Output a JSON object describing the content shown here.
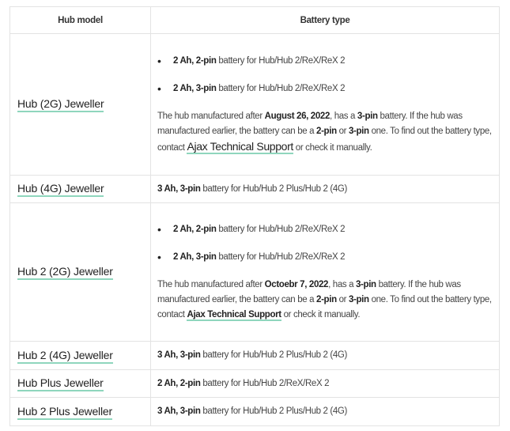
{
  "header": {
    "col_model": "Hub model",
    "col_battery": "Battery type"
  },
  "link_color": "#8fd6bd",
  "rows": [
    {
      "model": "Hub (2G) Jeweller",
      "bullets": [
        [
          {
            "b": true,
            "t": "2 Ah, 2-pin"
          },
          {
            "b": false,
            "t": " battery for Hub/Hub 2/ReX/ReX 2"
          }
        ],
        [
          {
            "b": true,
            "t": "2 Ah, 3-pin"
          },
          {
            "b": false,
            "t": " battery for Hub/Hub 2/ReX/ReX 2"
          }
        ]
      ],
      "note": [
        {
          "b": false,
          "t": "The hub manufactured after "
        },
        {
          "b": true,
          "t": "August 26, 2022"
        },
        {
          "b": false,
          "t": ", has a "
        },
        {
          "b": true,
          "t": "3-pin"
        },
        {
          "b": false,
          "t": " battery. If the hub was manufactured earlier, the battery can be a "
        },
        {
          "b": true,
          "t": "2-pin"
        },
        {
          "b": false,
          "t": " or "
        },
        {
          "b": true,
          "t": "3-pin"
        },
        {
          "b": false,
          "t": " one. To find out the battery type, contact "
        },
        {
          "link": "big",
          "t": "Ajax Technical Support"
        },
        {
          "b": false,
          "t": " or check it manually."
        }
      ]
    },
    {
      "model": "Hub (4G) Jeweller",
      "line": [
        {
          "b": true,
          "t": "3 Ah, 3-pin"
        },
        {
          "b": false,
          "t": " battery for Hub/Hub 2 Plus/Hub 2 (4G)"
        }
      ]
    },
    {
      "model": "Hub 2 (2G) Jeweller",
      "bullets": [
        [
          {
            "b": true,
            "t": "2 Ah, 2-pin"
          },
          {
            "b": false,
            "t": " battery for Hub/Hub 2/ReX/ReX 2"
          }
        ],
        [
          {
            "b": true,
            "t": "2 Ah, 3-pin"
          },
          {
            "b": false,
            "t": " battery for Hub/Hub 2/ReX/ReX 2"
          }
        ]
      ],
      "note": [
        {
          "b": false,
          "t": "The hub manufactured after "
        },
        {
          "b": true,
          "t": "Octoebr 7, 2022"
        },
        {
          "b": false,
          "t": ", has a "
        },
        {
          "b": true,
          "t": "3-pin"
        },
        {
          "b": false,
          "t": " battery. If the hub was manufactured earlier, the battery can be a "
        },
        {
          "b": true,
          "t": "2-pin"
        },
        {
          "b": false,
          "t": " or "
        },
        {
          "b": true,
          "t": "3-pin"
        },
        {
          "b": false,
          "t": " one. To find out the battery type, contact "
        },
        {
          "link": "small",
          "t": "Ajax Technical Support"
        },
        {
          "b": false,
          "t": " or check it manually."
        }
      ]
    },
    {
      "model": "Hub 2 (4G) Jeweller",
      "line": [
        {
          "b": true,
          "t": "3 Ah, 3-pin"
        },
        {
          "b": false,
          "t": " battery for Hub/Hub 2 Plus/Hub 2 (4G)"
        }
      ]
    },
    {
      "model": "Hub Plus Jeweller",
      "line": [
        {
          "b": true,
          "t": "2 Ah, 2-pin"
        },
        {
          "b": false,
          "t": " battery for Hub/Hub 2/ReX/ReX 2"
        }
      ]
    },
    {
      "model": "Hub 2 Plus Jeweller",
      "line": [
        {
          "b": true,
          "t": "3 Ah, 3-pin"
        },
        {
          "b": false,
          "t": " battery for Hub/Hub 2 Plus/Hub 2 (4G)"
        }
      ]
    }
  ]
}
